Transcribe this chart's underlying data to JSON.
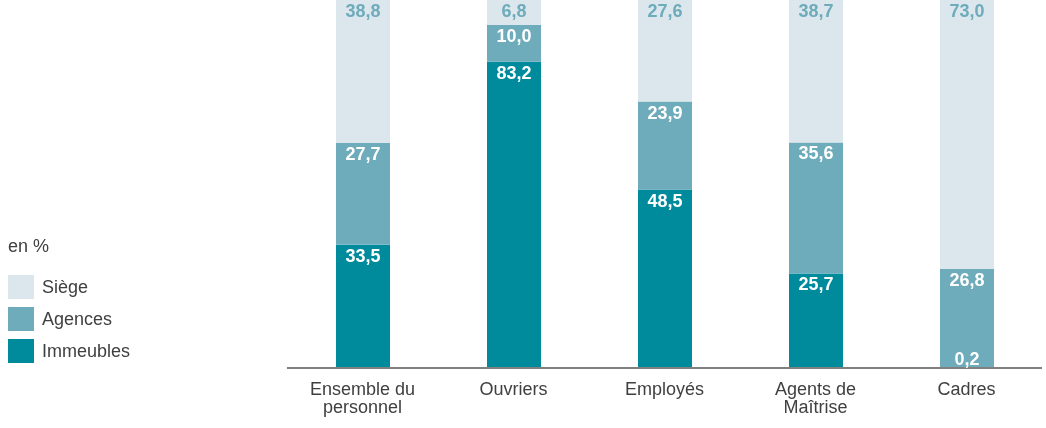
{
  "chart_data": {
    "type": "bar",
    "stacked": true,
    "legend": "left",
    "legend_title": "en %",
    "categories": [
      "Ensemble du personnel",
      "Ouvriers",
      "Employés",
      "Agents de Maîtrise",
      "Cadres"
    ],
    "series": [
      {
        "name": "Immeubles",
        "color": "#008b9c",
        "values": [
          33.5,
          83.2,
          48.5,
          25.7,
          0.2
        ],
        "value_labels": [
          "33,5",
          "83,2",
          "48,5",
          "25,7",
          "0,2"
        ]
      },
      {
        "name": "Agences",
        "color": "#6eabbb",
        "values": [
          27.7,
          10.0,
          23.9,
          35.6,
          26.8
        ],
        "value_labels": [
          "27,7",
          "10,0",
          "23,9",
          "35,6",
          "26,8"
        ]
      },
      {
        "name": "Siège",
        "color": "#dbe6ed",
        "values": [
          38.8,
          6.8,
          27.6,
          38.7,
          73.0
        ],
        "value_labels": [
          "38,8",
          "6,8",
          "27,6",
          "38,7",
          "73,0"
        ]
      }
    ]
  }
}
